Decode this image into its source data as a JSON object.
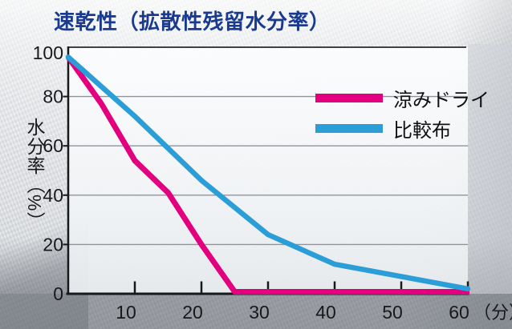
{
  "title": "速乾性（拡散性残留水分率）",
  "colors": {
    "title": "#1a3a8f",
    "axis": "#17181a",
    "grid": "#8f949a",
    "plot_top_border": "#3f4347",
    "tick_text": "#17191c",
    "suzumi_pink": "#e3007f",
    "hikaku_blue": "#2b9ed7"
  },
  "chart_data": {
    "type": "line",
    "title": "速乾性（拡散性残留水分率）",
    "ylabel": "水分率（%）",
    "x_unit": "（分）",
    "xlim": [
      0,
      60
    ],
    "ylim": [
      0,
      100
    ],
    "x_ticks": [
      10,
      20,
      30,
      40,
      50,
      60
    ],
    "y_ticks": [
      100,
      80,
      60,
      40,
      20,
      0
    ],
    "grid": "horizontal-only",
    "legend_position": "inside-upper-right",
    "series": [
      {
        "name": "涼みドライ",
        "color": "#e3007f",
        "x": [
          0,
          5,
          10,
          15,
          20,
          25,
          30,
          40,
          50,
          60
        ],
        "values": [
          96,
          77,
          54,
          41,
          20,
          0,
          0,
          0,
          0,
          0
        ]
      },
      {
        "name": "比較布",
        "color": "#2b9ed7",
        "x": [
          0,
          10,
          20,
          30,
          40,
          50,
          60
        ],
        "values": [
          96,
          72,
          46,
          24,
          12,
          7,
          2
        ]
      }
    ]
  }
}
